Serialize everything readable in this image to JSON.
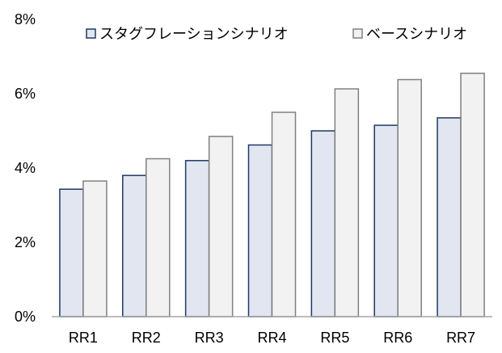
{
  "chart_data": {
    "type": "bar",
    "categories": [
      "RR1",
      "RR2",
      "RR3",
      "RR4",
      "RR5",
      "RR6",
      "RR7"
    ],
    "series": [
      {
        "name": "スタグフレーションシナリオ",
        "values": [
          3.43,
          3.8,
          4.2,
          4.62,
          5.0,
          5.15,
          5.35
        ],
        "fill": "#e1e6f0",
        "stroke": "#1f3864"
      },
      {
        "name": "ベースシナリオ",
        "values": [
          3.65,
          4.25,
          4.85,
          5.5,
          6.13,
          6.38,
          6.55
        ],
        "fill": "#f2f2f2",
        "stroke": "#808080"
      }
    ],
    "ylim": [
      0,
      8
    ],
    "yticks": [
      0,
      2,
      4,
      6,
      8
    ],
    "ytick_labels": [
      "0%",
      "2%",
      "4%",
      "6%",
      "8%"
    ],
    "xlabel": "",
    "ylabel": "",
    "title": "",
    "grid": false,
    "legend_position": "top-right"
  }
}
